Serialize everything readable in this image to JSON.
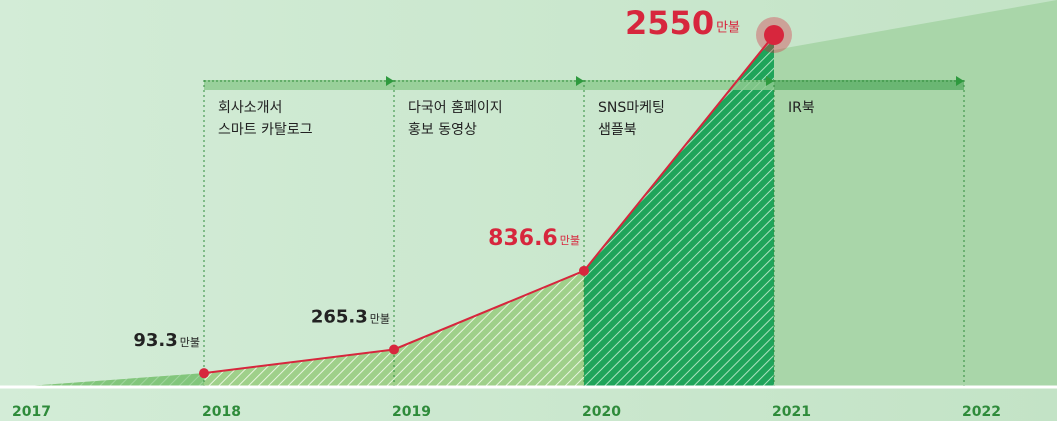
{
  "chart_data": {
    "type": "line",
    "categories": [
      "2017",
      "2018",
      "2019",
      "2020",
      "2021",
      "2022"
    ],
    "values": [
      null,
      93.3,
      265.3,
      836.6,
      2550,
      null
    ],
    "unit": "만불",
    "color": "#d7263d",
    "ylim": [
      0,
      2550
    ],
    "phases": [
      {
        "lines": [
          "회사소개서",
          "스마트 카탈로그"
        ]
      },
      {
        "lines": [
          "다국어 홈페이지",
          "홍보 동영상"
        ]
      },
      {
        "lines": [
          "SNS마케팅",
          "샘플북"
        ]
      },
      {
        "lines": [
          "IR북"
        ]
      }
    ]
  }
}
